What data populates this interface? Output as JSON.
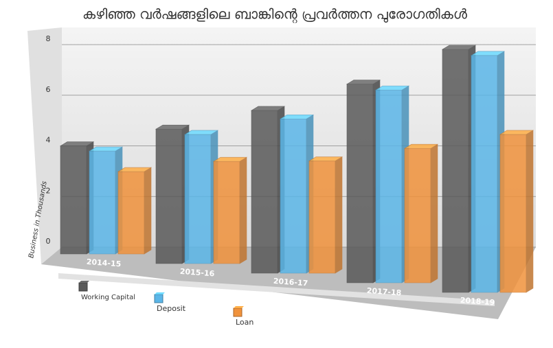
{
  "chart_data": {
    "type": "bar3d",
    "title": "കഴിഞ്ഞ വർഷങ്ങളിലെ ബാങ്കിന്റെ പ്രവർത്തന പുരോഗതികൾ",
    "y_label": "Business in Thousands",
    "categories": [
      "2014-15",
      "2015-16",
      "2016-17",
      "2017-18",
      "2018-19"
    ],
    "series": [
      {
        "name": "Working Capital",
        "color": "#5a5a5a",
        "values": [
          4.2,
          5.0,
          5.8,
          6.8,
          8.0
        ]
      },
      {
        "name": "Deposit",
        "color": "#5bb6e8",
        "values": [
          4.0,
          4.8,
          5.5,
          6.6,
          7.8
        ]
      },
      {
        "name": "Loan",
        "color": "#f0923c",
        "values": [
          3.2,
          3.8,
          4.0,
          4.6,
          5.2
        ]
      }
    ],
    "ylim": [
      0,
      8
    ],
    "yticks": [
      0,
      2,
      4,
      6,
      8
    ],
    "grid": true
  }
}
